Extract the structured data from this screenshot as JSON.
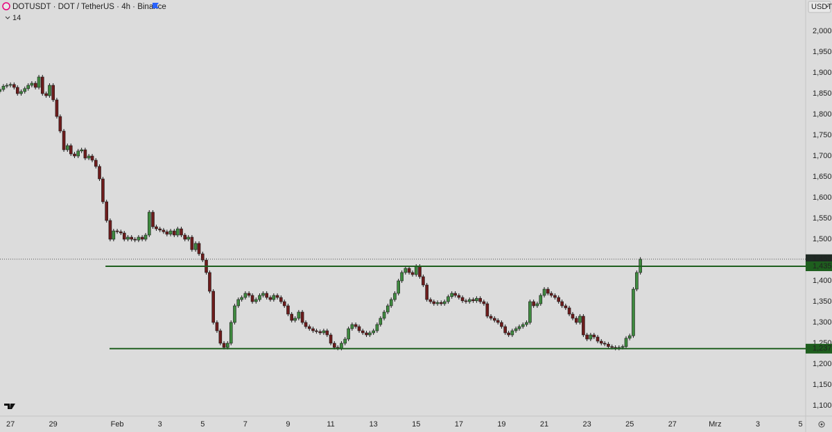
{
  "chart_data": {
    "type": "candlestick",
    "title": "DOTUSDT · DOT / TetherUS · 4h · Binance",
    "indicator": "14",
    "currency": "USDT",
    "up_color": "#3f8a3f",
    "down_color": "#6e1c1c",
    "outline": "#1a1a1a",
    "level_color": "#1e5e1e",
    "last_color": "#1f2a24",
    "grid": false,
    "xlim": [
      -0.49,
      37.24
    ],
    "xticks": [
      {
        "value": 0,
        "label": "27"
      },
      {
        "value": 2,
        "label": "29"
      },
      {
        "value": 5,
        "label": "Feb"
      },
      {
        "value": 7,
        "label": "3"
      },
      {
        "value": 9,
        "label": "5"
      },
      {
        "value": 11,
        "label": "7"
      },
      {
        "value": 13,
        "label": "9"
      },
      {
        "value": 15,
        "label": "11"
      },
      {
        "value": 17,
        "label": "13"
      },
      {
        "value": 19,
        "label": "15"
      },
      {
        "value": 21,
        "label": "17"
      },
      {
        "value": 23,
        "label": "19"
      },
      {
        "value": 25,
        "label": "21"
      },
      {
        "value": 27,
        "label": "23"
      },
      {
        "value": 29,
        "label": "25"
      },
      {
        "value": 31,
        "label": "27"
      },
      {
        "value": 33,
        "label": "Mrz"
      },
      {
        "value": 35,
        "label": "3"
      },
      {
        "value": 37,
        "label": "5"
      }
    ],
    "ylim": [
      1.075,
      2.075
    ],
    "yticks": [
      {
        "value": 1.1,
        "label": "1,100"
      },
      {
        "value": 1.15,
        "label": "1,150"
      },
      {
        "value": 1.2,
        "label": "1,200"
      },
      {
        "value": 1.25,
        "label": "1,250"
      },
      {
        "value": 1.3,
        "label": "1,300"
      },
      {
        "value": 1.35,
        "label": "1,350"
      },
      {
        "value": 1.4,
        "label": "1,400"
      },
      {
        "value": 1.45,
        "label": "1,450"
      },
      {
        "value": 1.5,
        "label": "1,500"
      },
      {
        "value": 1.55,
        "label": "1,550"
      },
      {
        "value": 1.6,
        "label": "1,600"
      },
      {
        "value": 1.65,
        "label": "1,650"
      },
      {
        "value": 1.7,
        "label": "1,700"
      },
      {
        "value": 1.75,
        "label": "1,750"
      },
      {
        "value": 1.8,
        "label": "1,800"
      },
      {
        "value": 1.85,
        "label": "1,850"
      },
      {
        "value": 1.9,
        "label": "1,900"
      },
      {
        "value": 1.95,
        "label": "1,950"
      },
      {
        "value": 2.0,
        "label": "2,000"
      }
    ],
    "levels": [
      {
        "value": 1.435,
        "label": "1,435",
        "start": 4.45
      },
      {
        "value": 1.237,
        "label": "1,237",
        "start": 4.64
      }
    ],
    "last": {
      "value": 1.452,
      "label": "1,452"
    },
    "candles": [
      [
        -0.5,
        1.855,
        1.865,
        1.85,
        1.86
      ],
      [
        -0.33,
        1.86,
        1.873,
        1.855,
        1.868
      ],
      [
        -0.17,
        1.868,
        1.875,
        1.863,
        1.87
      ],
      [
        0,
        1.87,
        1.877,
        1.865,
        1.872
      ],
      [
        0.17,
        1.872,
        1.877,
        1.86,
        1.865
      ],
      [
        0.33,
        1.865,
        1.87,
        1.845,
        1.85
      ],
      [
        0.5,
        1.85,
        1.86,
        1.845,
        1.855
      ],
      [
        0.67,
        1.855,
        1.867,
        1.85,
        1.862
      ],
      [
        0.83,
        1.862,
        1.875,
        1.857,
        1.87
      ],
      [
        1,
        1.87,
        1.88,
        1.865,
        1.875
      ],
      [
        1.17,
        1.875,
        1.88,
        1.86,
        1.865
      ],
      [
        1.33,
        1.865,
        1.895,
        1.86,
        1.89
      ],
      [
        1.5,
        1.89,
        1.895,
        1.845,
        1.85
      ],
      [
        1.67,
        1.85,
        1.855,
        1.84,
        1.845
      ],
      [
        1.83,
        1.845,
        1.875,
        1.84,
        1.87
      ],
      [
        2,
        1.87,
        1.875,
        1.83,
        1.835
      ],
      [
        2.17,
        1.835,
        1.84,
        1.79,
        1.795
      ],
      [
        2.33,
        1.795,
        1.8,
        1.755,
        1.76
      ],
      [
        2.5,
        1.76,
        1.765,
        1.71,
        1.715
      ],
      [
        2.67,
        1.715,
        1.73,
        1.71,
        1.725
      ],
      [
        2.83,
        1.725,
        1.73,
        1.7,
        1.705
      ],
      [
        3,
        1.705,
        1.71,
        1.695,
        1.7
      ],
      [
        3.17,
        1.7,
        1.717,
        1.695,
        1.712
      ],
      [
        3.33,
        1.712,
        1.72,
        1.707,
        1.715
      ],
      [
        3.5,
        1.715,
        1.72,
        1.69,
        1.695
      ],
      [
        3.67,
        1.695,
        1.705,
        1.69,
        1.7
      ],
      [
        3.83,
        1.7,
        1.705,
        1.685,
        1.69
      ],
      [
        4,
        1.69,
        1.695,
        1.67,
        1.675
      ],
      [
        4.17,
        1.675,
        1.68,
        1.64,
        1.645
      ],
      [
        4.33,
        1.645,
        1.65,
        1.585,
        1.59
      ],
      [
        4.5,
        1.59,
        1.595,
        1.54,
        1.545
      ],
      [
        4.67,
        1.545,
        1.55,
        1.495,
        1.5
      ],
      [
        4.83,
        1.5,
        1.525,
        1.495,
        1.52
      ],
      [
        5,
        1.52,
        1.525,
        1.513,
        1.518
      ],
      [
        5.17,
        1.518,
        1.523,
        1.51,
        1.515
      ],
      [
        5.33,
        1.515,
        1.52,
        1.495,
        1.5
      ],
      [
        5.5,
        1.5,
        1.51,
        1.495,
        1.505
      ],
      [
        5.67,
        1.505,
        1.51,
        1.495,
        1.5
      ],
      [
        5.83,
        1.5,
        1.505,
        1.493,
        1.498
      ],
      [
        6,
        1.498,
        1.51,
        1.493,
        1.505
      ],
      [
        6.17,
        1.505,
        1.51,
        1.495,
        1.5
      ],
      [
        6.33,
        1.5,
        1.515,
        1.495,
        1.51
      ],
      [
        6.5,
        1.51,
        1.57,
        1.505,
        1.565
      ],
      [
        6.67,
        1.565,
        1.57,
        1.525,
        1.53
      ],
      [
        6.83,
        1.53,
        1.535,
        1.52,
        1.525
      ],
      [
        7,
        1.525,
        1.53,
        1.517,
        1.522
      ],
      [
        7.17,
        1.522,
        1.527,
        1.513,
        1.518
      ],
      [
        7.33,
        1.518,
        1.523,
        1.507,
        1.512
      ],
      [
        7.5,
        1.512,
        1.525,
        1.507,
        1.52
      ],
      [
        7.67,
        1.52,
        1.525,
        1.505,
        1.51
      ],
      [
        7.83,
        1.51,
        1.53,
        1.505,
        1.525
      ],
      [
        8,
        1.525,
        1.53,
        1.505,
        1.51
      ],
      [
        8.17,
        1.51,
        1.515,
        1.495,
        1.5
      ],
      [
        8.33,
        1.5,
        1.51,
        1.495,
        1.505
      ],
      [
        8.5,
        1.505,
        1.51,
        1.47,
        1.475
      ],
      [
        8.67,
        1.475,
        1.495,
        1.47,
        1.49
      ],
      [
        8.83,
        1.49,
        1.495,
        1.46,
        1.465
      ],
      [
        9,
        1.465,
        1.47,
        1.445,
        1.45
      ],
      [
        9.17,
        1.45,
        1.455,
        1.415,
        1.42
      ],
      [
        9.33,
        1.42,
        1.425,
        1.37,
        1.375
      ],
      [
        9.5,
        1.375,
        1.38,
        1.295,
        1.3
      ],
      [
        9.67,
        1.3,
        1.305,
        1.275,
        1.28
      ],
      [
        9.83,
        1.28,
        1.285,
        1.245,
        1.25
      ],
      [
        10,
        1.25,
        1.255,
        1.235,
        1.24
      ],
      [
        10.17,
        1.24,
        1.255,
        1.235,
        1.25
      ],
      [
        10.33,
        1.25,
        1.305,
        1.245,
        1.3
      ],
      [
        10.5,
        1.3,
        1.345,
        1.295,
        1.34
      ],
      [
        10.67,
        1.34,
        1.36,
        1.335,
        1.355
      ],
      [
        10.83,
        1.355,
        1.365,
        1.35,
        1.36
      ],
      [
        11,
        1.36,
        1.375,
        1.355,
        1.37
      ],
      [
        11.17,
        1.37,
        1.375,
        1.36,
        1.365
      ],
      [
        11.33,
        1.365,
        1.37,
        1.345,
        1.35
      ],
      [
        11.5,
        1.35,
        1.36,
        1.345,
        1.355
      ],
      [
        11.67,
        1.355,
        1.37,
        1.35,
        1.365
      ],
      [
        11.83,
        1.365,
        1.375,
        1.36,
        1.37
      ],
      [
        12,
        1.37,
        1.375,
        1.355,
        1.36
      ],
      [
        12.17,
        1.36,
        1.365,
        1.35,
        1.355
      ],
      [
        12.33,
        1.355,
        1.37,
        1.35,
        1.365
      ],
      [
        12.5,
        1.365,
        1.37,
        1.355,
        1.36
      ],
      [
        12.67,
        1.36,
        1.365,
        1.345,
        1.35
      ],
      [
        12.83,
        1.35,
        1.355,
        1.335,
        1.34
      ],
      [
        13,
        1.34,
        1.345,
        1.315,
        1.32
      ],
      [
        13.17,
        1.32,
        1.325,
        1.3,
        1.305
      ],
      [
        13.33,
        1.305,
        1.315,
        1.3,
        1.31
      ],
      [
        13.5,
        1.31,
        1.33,
        1.305,
        1.325
      ],
      [
        13.67,
        1.325,
        1.33,
        1.295,
        1.3
      ],
      [
        13.83,
        1.3,
        1.305,
        1.285,
        1.29
      ],
      [
        14,
        1.29,
        1.295,
        1.28,
        1.285
      ],
      [
        14.17,
        1.285,
        1.29,
        1.275,
        1.28
      ],
      [
        14.33,
        1.28,
        1.285,
        1.273,
        1.278
      ],
      [
        14.5,
        1.278,
        1.283,
        1.27,
        1.275
      ],
      [
        14.67,
        1.275,
        1.285,
        1.27,
        1.28
      ],
      [
        14.83,
        1.28,
        1.285,
        1.265,
        1.27
      ],
      [
        15,
        1.27,
        1.275,
        1.245,
        1.25
      ],
      [
        15.17,
        1.25,
        1.255,
        1.235,
        1.24
      ],
      [
        15.33,
        1.24,
        1.245,
        1.233,
        1.238
      ],
      [
        15.5,
        1.238,
        1.255,
        1.233,
        1.25
      ],
      [
        15.67,
        1.25,
        1.265,
        1.245,
        1.26
      ],
      [
        15.83,
        1.26,
        1.29,
        1.255,
        1.285
      ],
      [
        16,
        1.285,
        1.3,
        1.28,
        1.295
      ],
      [
        16.17,
        1.295,
        1.3,
        1.285,
        1.29
      ],
      [
        16.33,
        1.29,
        1.295,
        1.275,
        1.28
      ],
      [
        16.5,
        1.28,
        1.285,
        1.27,
        1.275
      ],
      [
        16.67,
        1.275,
        1.28,
        1.265,
        1.27
      ],
      [
        16.83,
        1.27,
        1.28,
        1.265,
        1.275
      ],
      [
        17,
        1.275,
        1.285,
        1.27,
        1.28
      ],
      [
        17.17,
        1.28,
        1.3,
        1.275,
        1.295
      ],
      [
        17.33,
        1.295,
        1.315,
        1.29,
        1.31
      ],
      [
        17.5,
        1.31,
        1.33,
        1.305,
        1.325
      ],
      [
        17.67,
        1.325,
        1.345,
        1.32,
        1.34
      ],
      [
        17.83,
        1.34,
        1.36,
        1.335,
        1.355
      ],
      [
        18,
        1.355,
        1.375,
        1.35,
        1.37
      ],
      [
        18.17,
        1.37,
        1.405,
        1.365,
        1.4
      ],
      [
        18.33,
        1.4,
        1.425,
        1.395,
        1.42
      ],
      [
        18.5,
        1.42,
        1.435,
        1.415,
        1.43
      ],
      [
        18.67,
        1.43,
        1.435,
        1.415,
        1.42
      ],
      [
        18.83,
        1.42,
        1.425,
        1.41,
        1.415
      ],
      [
        19,
        1.415,
        1.44,
        1.41,
        1.435
      ],
      [
        19.17,
        1.435,
        1.44,
        1.405,
        1.41
      ],
      [
        19.33,
        1.41,
        1.415,
        1.385,
        1.39
      ],
      [
        19.5,
        1.39,
        1.395,
        1.35,
        1.355
      ],
      [
        19.67,
        1.355,
        1.36,
        1.345,
        1.35
      ],
      [
        19.83,
        1.35,
        1.355,
        1.34,
        1.345
      ],
      [
        20,
        1.345,
        1.353,
        1.34,
        1.348
      ],
      [
        20.17,
        1.348,
        1.353,
        1.34,
        1.345
      ],
      [
        20.33,
        1.345,
        1.355,
        1.34,
        1.35
      ],
      [
        20.5,
        1.35,
        1.367,
        1.345,
        1.362
      ],
      [
        20.67,
        1.362,
        1.375,
        1.357,
        1.37
      ],
      [
        20.83,
        1.37,
        1.375,
        1.36,
        1.365
      ],
      [
        21,
        1.365,
        1.37,
        1.355,
        1.36
      ],
      [
        21.17,
        1.36,
        1.365,
        1.347,
        1.352
      ],
      [
        21.33,
        1.352,
        1.357,
        1.345,
        1.35
      ],
      [
        21.5,
        1.35,
        1.36,
        1.345,
        1.355
      ],
      [
        21.67,
        1.355,
        1.36,
        1.347,
        1.352
      ],
      [
        21.83,
        1.352,
        1.363,
        1.347,
        1.358
      ],
      [
        22,
        1.358,
        1.363,
        1.345,
        1.35
      ],
      [
        22.17,
        1.35,
        1.355,
        1.34,
        1.345
      ],
      [
        22.33,
        1.345,
        1.35,
        1.31,
        1.315
      ],
      [
        22.5,
        1.315,
        1.32,
        1.305,
        1.31
      ],
      [
        22.67,
        1.31,
        1.315,
        1.3,
        1.305
      ],
      [
        22.83,
        1.305,
        1.31,
        1.295,
        1.3
      ],
      [
        23,
        1.3,
        1.305,
        1.285,
        1.29
      ],
      [
        23.17,
        1.29,
        1.295,
        1.27,
        1.275
      ],
      [
        23.33,
        1.275,
        1.28,
        1.265,
        1.27
      ],
      [
        23.5,
        1.27,
        1.285,
        1.265,
        1.28
      ],
      [
        23.67,
        1.28,
        1.29,
        1.275,
        1.285
      ],
      [
        23.83,
        1.285,
        1.295,
        1.28,
        1.29
      ],
      [
        24,
        1.29,
        1.3,
        1.285,
        1.295
      ],
      [
        24.17,
        1.295,
        1.305,
        1.29,
        1.3
      ],
      [
        24.33,
        1.3,
        1.355,
        1.295,
        1.35
      ],
      [
        24.5,
        1.35,
        1.355,
        1.335,
        1.34
      ],
      [
        24.67,
        1.34,
        1.35,
        1.335,
        1.345
      ],
      [
        24.83,
        1.345,
        1.37,
        1.34,
        1.365
      ],
      [
        25,
        1.365,
        1.385,
        1.36,
        1.38
      ],
      [
        25.17,
        1.38,
        1.385,
        1.365,
        1.37
      ],
      [
        25.33,
        1.37,
        1.375,
        1.36,
        1.365
      ],
      [
        25.5,
        1.365,
        1.37,
        1.355,
        1.36
      ],
      [
        25.67,
        1.36,
        1.365,
        1.345,
        1.35
      ],
      [
        25.83,
        1.35,
        1.355,
        1.335,
        1.34
      ],
      [
        26,
        1.34,
        1.345,
        1.33,
        1.335
      ],
      [
        26.17,
        1.335,
        1.34,
        1.315,
        1.32
      ],
      [
        26.33,
        1.32,
        1.325,
        1.305,
        1.31
      ],
      [
        26.5,
        1.31,
        1.315,
        1.295,
        1.3
      ],
      [
        26.67,
        1.3,
        1.32,
        1.295,
        1.315
      ],
      [
        26.83,
        1.315,
        1.32,
        1.265,
        1.27
      ],
      [
        27,
        1.27,
        1.275,
        1.255,
        1.26
      ],
      [
        27.17,
        1.26,
        1.275,
        1.255,
        1.27
      ],
      [
        27.33,
        1.27,
        1.275,
        1.26,
        1.265
      ],
      [
        27.5,
        1.265,
        1.27,
        1.25,
        1.255
      ],
      [
        27.67,
        1.255,
        1.26,
        1.245,
        1.25
      ],
      [
        27.83,
        1.25,
        1.255,
        1.243,
        1.248
      ],
      [
        28,
        1.248,
        1.253,
        1.237,
        1.242
      ],
      [
        28.17,
        1.242,
        1.247,
        1.235,
        1.24
      ],
      [
        28.33,
        1.24,
        1.245,
        1.233,
        1.238
      ],
      [
        28.5,
        1.238,
        1.245,
        1.233,
        1.24
      ],
      [
        28.67,
        1.24,
        1.247,
        1.235,
        1.242
      ],
      [
        28.83,
        1.242,
        1.267,
        1.237,
        1.262
      ],
      [
        29,
        1.262,
        1.273,
        1.257,
        1.268
      ],
      [
        29.17,
        1.268,
        1.385,
        1.263,
        1.38
      ],
      [
        29.33,
        1.38,
        1.425,
        1.375,
        1.42
      ],
      [
        29.5,
        1.42,
        1.457,
        1.415,
        1.452
      ]
    ]
  }
}
